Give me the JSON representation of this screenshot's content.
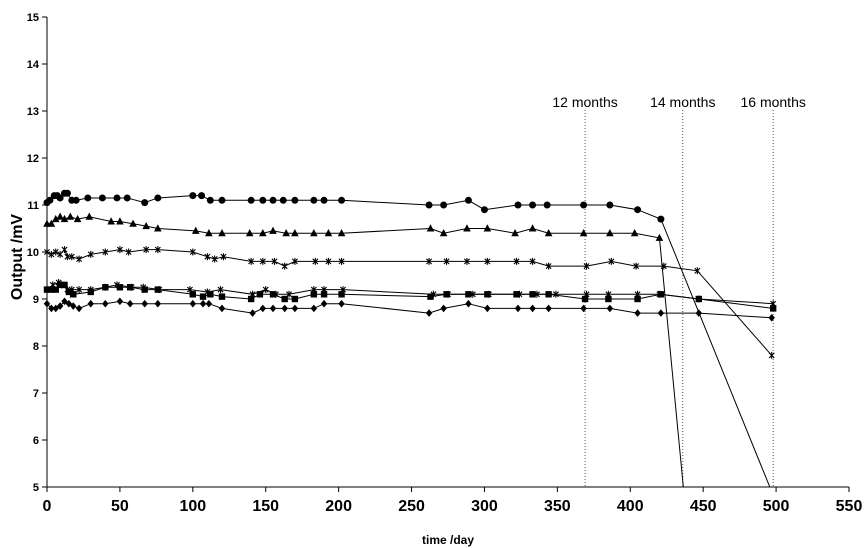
{
  "chart_data": {
    "type": "line",
    "xlabel": "time /day",
    "ylabel": "Output /mV",
    "xlim": [
      0,
      550
    ],
    "ylim": [
      5,
      15
    ],
    "x_ticks": [
      0,
      50,
      100,
      150,
      200,
      250,
      300,
      350,
      400,
      450,
      500,
      550
    ],
    "y_ticks": [
      5,
      6,
      7,
      8,
      9,
      10,
      11,
      12,
      13,
      14,
      15
    ],
    "grid": false,
    "legend": "none",
    "annotations": [
      {
        "label": "12 months",
        "x": 369
      },
      {
        "label": "14 months",
        "x": 436
      },
      {
        "label": "16 months",
        "x": 498
      }
    ],
    "series": [
      {
        "marker": "circle",
        "points": [
          [
            0,
            11.05
          ],
          [
            2,
            11.1
          ],
          [
            5,
            11.2
          ],
          [
            7,
            11.2
          ],
          [
            9,
            11.15
          ],
          [
            12,
            11.25
          ],
          [
            14,
            11.25
          ],
          [
            17,
            11.1
          ],
          [
            20,
            11.1
          ],
          [
            28,
            11.15
          ],
          [
            38,
            11.15
          ],
          [
            48,
            11.15
          ],
          [
            55,
            11.15
          ],
          [
            67,
            11.05
          ],
          [
            76,
            11.15
          ],
          [
            100,
            11.2
          ],
          [
            106,
            11.2
          ],
          [
            112,
            11.1
          ],
          [
            120,
            11.1
          ],
          [
            140,
            11.1
          ],
          [
            148,
            11.1
          ],
          [
            155,
            11.1
          ],
          [
            162,
            11.1
          ],
          [
            170,
            11.1
          ],
          [
            183,
            11.1
          ],
          [
            190,
            11.1
          ],
          [
            202,
            11.1
          ],
          [
            262,
            11.0
          ],
          [
            272,
            11.0
          ],
          [
            289,
            11.1
          ],
          [
            300,
            10.9
          ],
          [
            323,
            11.0
          ],
          [
            333,
            11.0
          ],
          [
            343,
            11.0
          ],
          [
            368,
            11.0
          ],
          [
            386,
            11.0
          ],
          [
            405,
            10.9
          ],
          [
            421,
            10.7
          ],
          [
            497,
            4.9
          ]
        ]
      },
      {
        "marker": "triangle",
        "points": [
          [
            0,
            10.6
          ],
          [
            3,
            10.6
          ],
          [
            6,
            10.7
          ],
          [
            9,
            10.75
          ],
          [
            12,
            10.7
          ],
          [
            16,
            10.75
          ],
          [
            21,
            10.7
          ],
          [
            29,
            10.75
          ],
          [
            44,
            10.65
          ],
          [
            50,
            10.65
          ],
          [
            59,
            10.6
          ],
          [
            68,
            10.55
          ],
          [
            76,
            10.5
          ],
          [
            102,
            10.45
          ],
          [
            111,
            10.4
          ],
          [
            120,
            10.4
          ],
          [
            139,
            10.4
          ],
          [
            148,
            10.4
          ],
          [
            155,
            10.45
          ],
          [
            164,
            10.4
          ],
          [
            170,
            10.4
          ],
          [
            183,
            10.4
          ],
          [
            193,
            10.4
          ],
          [
            202,
            10.4
          ],
          [
            263,
            10.5
          ],
          [
            272,
            10.4
          ],
          [
            288,
            10.5
          ],
          [
            302,
            10.5
          ],
          [
            321,
            10.4
          ],
          [
            333,
            10.5
          ],
          [
            344,
            10.4
          ],
          [
            368,
            10.4
          ],
          [
            386,
            10.4
          ],
          [
            403,
            10.4
          ],
          [
            420,
            10.3
          ],
          [
            437,
            4.8
          ]
        ]
      },
      {
        "marker": "star",
        "points": [
          [
            0,
            10.0
          ],
          [
            3,
            9.95
          ],
          [
            6,
            10.0
          ],
          [
            9,
            9.95
          ],
          [
            12,
            10.05
          ],
          [
            14,
            9.9
          ],
          [
            17,
            9.9
          ],
          [
            22,
            9.85
          ],
          [
            30,
            9.95
          ],
          [
            40,
            10.0
          ],
          [
            50,
            10.05
          ],
          [
            56,
            10.0
          ],
          [
            68,
            10.05
          ],
          [
            76,
            10.05
          ],
          [
            100,
            10.0
          ],
          [
            110,
            9.9
          ],
          [
            115,
            9.85
          ],
          [
            121,
            9.9
          ],
          [
            140,
            9.8
          ],
          [
            148,
            9.8
          ],
          [
            156,
            9.8
          ],
          [
            163,
            9.7
          ],
          [
            170,
            9.8
          ],
          [
            184,
            9.8
          ],
          [
            193,
            9.8
          ],
          [
            202,
            9.8
          ],
          [
            262,
            9.8
          ],
          [
            274,
            9.8
          ],
          [
            288,
            9.8
          ],
          [
            302,
            9.8
          ],
          [
            322,
            9.8
          ],
          [
            333,
            9.8
          ],
          [
            344,
            9.7
          ],
          [
            370,
            9.7
          ],
          [
            387,
            9.8
          ],
          [
            404,
            9.7
          ],
          [
            423,
            9.7
          ],
          [
            446,
            9.6
          ],
          [
            497,
            7.8
          ]
        ]
      },
      {
        "marker": "square",
        "points": [
          [
            0,
            9.2
          ],
          [
            3,
            9.2
          ],
          [
            6,
            9.2
          ],
          [
            9,
            9.3
          ],
          [
            12,
            9.3
          ],
          [
            15,
            9.15
          ],
          [
            18,
            9.1
          ],
          [
            30,
            9.15
          ],
          [
            40,
            9.25
          ],
          [
            50,
            9.25
          ],
          [
            57,
            9.25
          ],
          [
            67,
            9.2
          ],
          [
            76,
            9.2
          ],
          [
            100,
            9.1
          ],
          [
            107,
            9.05
          ],
          [
            112,
            9.1
          ],
          [
            120,
            9.05
          ],
          [
            140,
            9.0
          ],
          [
            146,
            9.1
          ],
          [
            155,
            9.1
          ],
          [
            163,
            9.0
          ],
          [
            170,
            9.0
          ],
          [
            183,
            9.1
          ],
          [
            190,
            9.1
          ],
          [
            202,
            9.1
          ],
          [
            263,
            9.05
          ],
          [
            274,
            9.1
          ],
          [
            289,
            9.1
          ],
          [
            302,
            9.1
          ],
          [
            322,
            9.1
          ],
          [
            333,
            9.1
          ],
          [
            344,
            9.1
          ],
          [
            369,
            9.0
          ],
          [
            385,
            9.0
          ],
          [
            405,
            9.0
          ],
          [
            421,
            9.1
          ],
          [
            447,
            9.0
          ],
          [
            498,
            8.8
          ]
        ]
      },
      {
        "marker": "star",
        "points": [
          [
            0,
            9.2
          ],
          [
            4,
            9.3
          ],
          [
            8,
            9.35
          ],
          [
            10,
            9.3
          ],
          [
            14,
            9.2
          ],
          [
            17,
            9.2
          ],
          [
            22,
            9.2
          ],
          [
            30,
            9.2
          ],
          [
            40,
            9.25
          ],
          [
            48,
            9.3
          ],
          [
            58,
            9.25
          ],
          [
            66,
            9.25
          ],
          [
            77,
            9.2
          ],
          [
            98,
            9.2
          ],
          [
            110,
            9.15
          ],
          [
            119,
            9.2
          ],
          [
            141,
            9.1
          ],
          [
            150,
            9.2
          ],
          [
            157,
            9.1
          ],
          [
            166,
            9.1
          ],
          [
            183,
            9.2
          ],
          [
            190,
            9.2
          ],
          [
            203,
            9.2
          ],
          [
            265,
            9.1
          ],
          [
            275,
            9.1
          ],
          [
            292,
            9.1
          ],
          [
            303,
            9.1
          ],
          [
            324,
            9.1
          ],
          [
            336,
            9.1
          ],
          [
            349,
            9.1
          ],
          [
            370,
            9.1
          ],
          [
            385,
            9.1
          ],
          [
            405,
            9.1
          ],
          [
            420,
            9.1
          ],
          [
            447,
            9.0
          ],
          [
            498,
            8.9
          ]
        ]
      },
      {
        "marker": "diamond",
        "points": [
          [
            0,
            8.9
          ],
          [
            3,
            8.8
          ],
          [
            6,
            8.8
          ],
          [
            9,
            8.85
          ],
          [
            12,
            8.95
          ],
          [
            15,
            8.9
          ],
          [
            18,
            8.85
          ],
          [
            22,
            8.8
          ],
          [
            30,
            8.9
          ],
          [
            40,
            8.9
          ],
          [
            50,
            8.95
          ],
          [
            57,
            8.9
          ],
          [
            67,
            8.9
          ],
          [
            76,
            8.9
          ],
          [
            100,
            8.9
          ],
          [
            107,
            8.9
          ],
          [
            111,
            8.9
          ],
          [
            120,
            8.8
          ],
          [
            141,
            8.7
          ],
          [
            148,
            8.8
          ],
          [
            155,
            8.8
          ],
          [
            163,
            8.8
          ],
          [
            170,
            8.8
          ],
          [
            183,
            8.8
          ],
          [
            190,
            8.9
          ],
          [
            202,
            8.9
          ],
          [
            262,
            8.7
          ],
          [
            272,
            8.8
          ],
          [
            289,
            8.9
          ],
          [
            302,
            8.8
          ],
          [
            323,
            8.8
          ],
          [
            333,
            8.8
          ],
          [
            344,
            8.8
          ],
          [
            368,
            8.8
          ],
          [
            386,
            8.8
          ],
          [
            405,
            8.7
          ],
          [
            421,
            8.7
          ],
          [
            447,
            8.7
          ],
          [
            497,
            8.6
          ]
        ]
      }
    ]
  }
}
